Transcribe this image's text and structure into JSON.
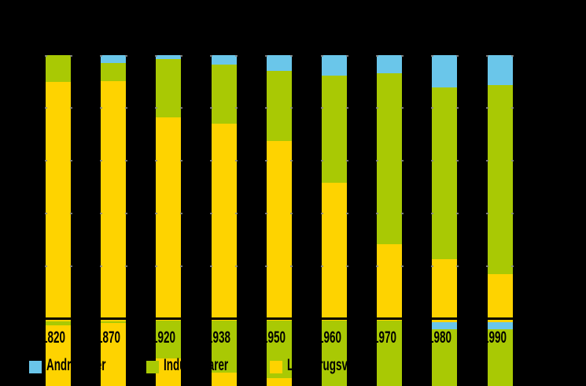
{
  "chart_data": {
    "type": "bar",
    "subtype": "stacked-100-percent-column",
    "title": "",
    "categories": [
      "1820",
      "1870",
      "1920",
      "1938",
      "1950",
      "1960",
      "1970",
      "1980",
      "1990"
    ],
    "series": [
      {
        "name": "Andre varer",
        "color": "#6ac6ea",
        "values": [
          0,
          3.0,
          1.6,
          3.7,
          6.0,
          7.7,
          6.8,
          12.1,
          11.2
        ]
      },
      {
        "name": "Industrivarer",
        "color": "#a9c904",
        "values": [
          10.0,
          6.7,
          21.9,
          22.0,
          26.4,
          40.5,
          64.4,
          64.9,
          71.3
        ]
      },
      {
        "name": "Landbrugsvarer",
        "color": "#fed300",
        "values": [
          90.0,
          90.3,
          76.5,
          74.3,
          67.6,
          51.8,
          28.8,
          23.0,
          17.5
        ]
      }
    ],
    "xlabel": "",
    "ylabel": "",
    "ylim": [
      0,
      100
    ],
    "gridlines_pct": [
      20,
      40,
      60,
      80,
      100
    ],
    "grid": "edge-tick-stubs-only",
    "legend_position": "bottom",
    "note": "Axis, title and tick text of the source chart is black on a transparent (rendered black) background, so only the labels overlapping coloured bars are visible."
  },
  "legend": {
    "items": [
      {
        "label": "Andre varer",
        "color": "#6ac6ea"
      },
      {
        "label": "Industrivarer",
        "color": "#a9c904"
      },
      {
        "label": "Landbrugsvarer",
        "color": "#fed300"
      }
    ]
  },
  "x_axis": {
    "labels": [
      "1820",
      "1870",
      "1920",
      "1938",
      "1950",
      "1960",
      "1970",
      "1980",
      "1990"
    ]
  },
  "partial_second_chart": {
    "note": "Top slice of a second identical-style stacked chart visible below the axis of the first, cropped by the bottom edge of the image; bands given as [seriesKey, heightPx] from y=407.",
    "bands": [
      [
        [
          "landbrug",
          1
        ],
        [
          "industri",
          4.5
        ],
        [
          "landbrug",
          77.5
        ]
      ],
      [
        [
          "landbrug",
          1
        ],
        [
          "industri",
          2
        ],
        [
          "landbrug",
          80
        ]
      ],
      [
        [
          "industri",
          48
        ],
        [
          "landbrug",
          35
        ]
      ],
      [
        [
          "industri",
          66
        ],
        [
          "landbrug",
          17
        ]
      ],
      [
        [
          "industri",
          73
        ],
        [
          "landbrug",
          10
        ]
      ],
      [
        [
          "industri",
          83
        ]
      ],
      [
        [
          "industri",
          83
        ]
      ],
      [
        [
          "landbrug",
          1.5
        ],
        [
          "andre",
          9.5
        ],
        [
          "industri",
          72
        ]
      ],
      [
        [
          "landbrug",
          1.5
        ],
        [
          "andre",
          9.5
        ],
        [
          "industri",
          72
        ]
      ]
    ]
  },
  "colors": {
    "background": "#000000",
    "axis": "#000000",
    "text": "#000000",
    "andre": "#6ac6ea",
    "industri": "#a9c904",
    "landbrug": "#fed300"
  }
}
